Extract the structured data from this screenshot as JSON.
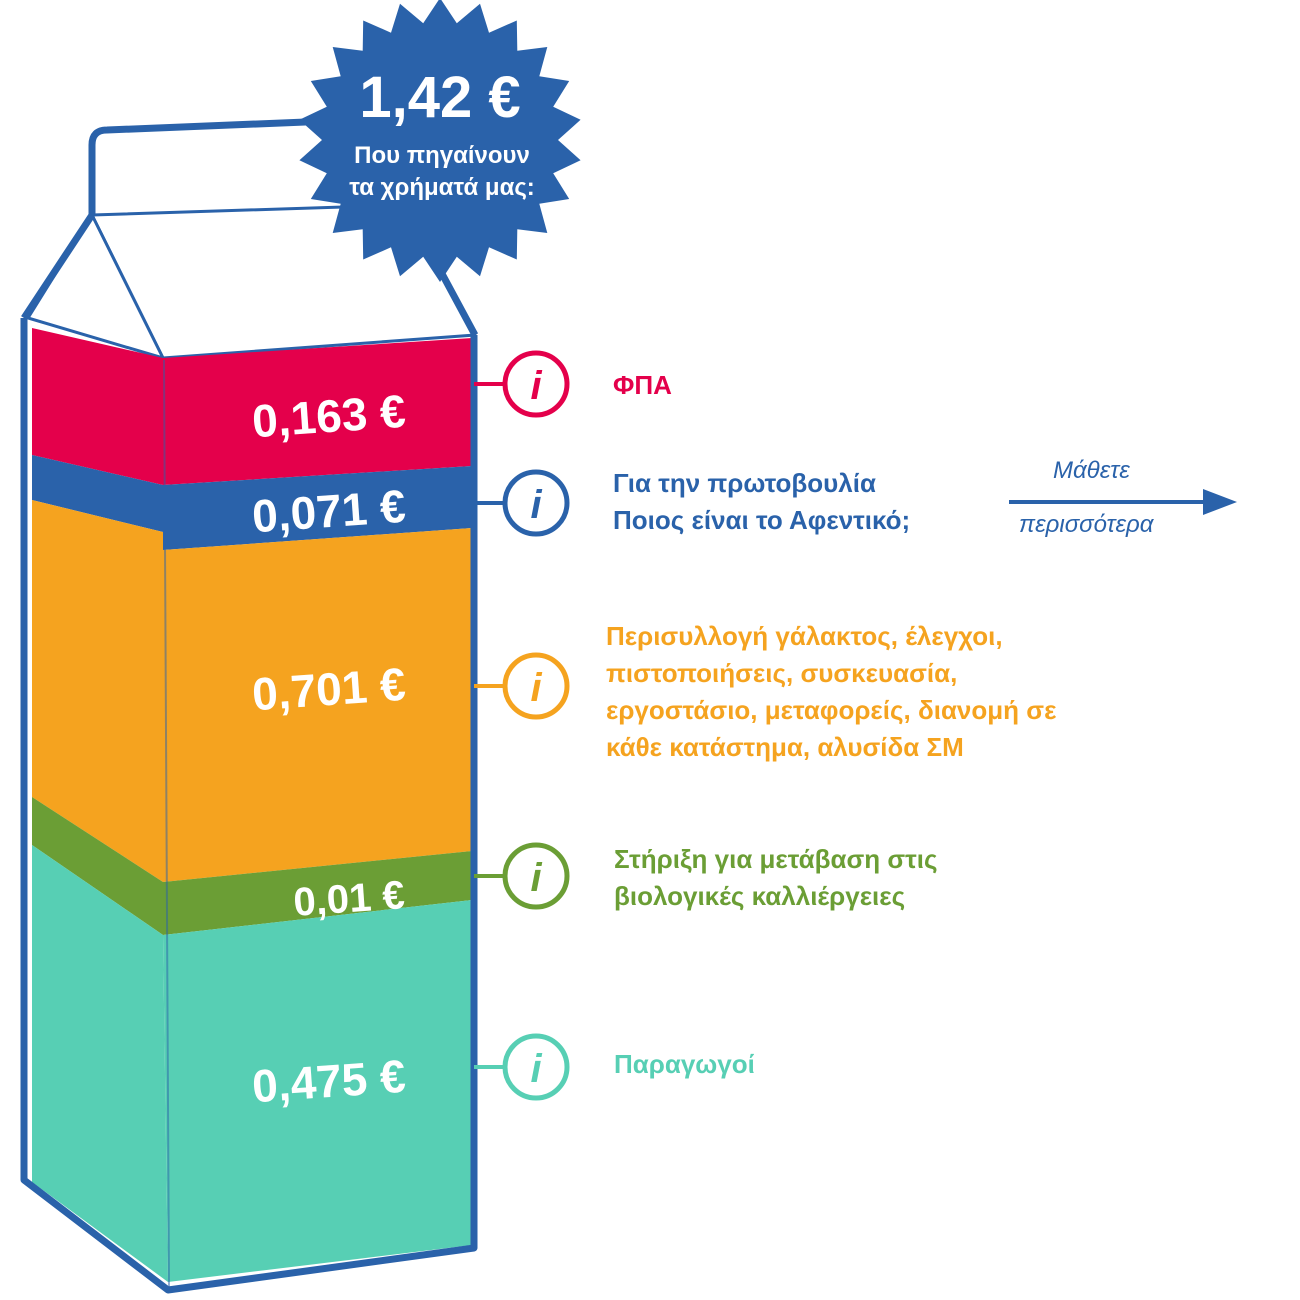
{
  "badge": {
    "total": "1,42 €",
    "line1": "Που πηγαίνουν",
    "line2": "τα χρήματά μας:"
  },
  "segments": [
    {
      "id": "vat",
      "value_label": "0,163 €",
      "color": "#e4004b",
      "label_lines": [
        "ΦΠΑ"
      ]
    },
    {
      "id": "initiative",
      "value_label": "0,071 €",
      "color": "#2a62aa",
      "label_lines": [
        "Για την πρωτοβουλία",
        "Ποιος είναι το Αφεντικό;"
      ]
    },
    {
      "id": "distribution",
      "value_label": "0,701 €",
      "color": "#f5a31f",
      "label_lines": [
        "Περισυλλογή γάλακτος, έλεγχοι,",
        "πιστοποιήσεις,  συσκευασία,",
        "εργοστάσιο, μεταφορείς, διανομή σε",
        "κάθε κατάστημα, αλυσίδα ΣΜ"
      ]
    },
    {
      "id": "organic",
      "value_label": "0,01 €",
      "color": "#6b9e35",
      "label_lines": [
        "Στήριξη για μετάβαση στις",
        "βιολογικές καλλιέργειες"
      ]
    },
    {
      "id": "producers",
      "value_label": "0,475 €",
      "color": "#57cfb4",
      "label_lines": [
        "Παραγωγοί"
      ]
    }
  ],
  "learn_more": {
    "line1": "Μάθετε",
    "line2": "περισσότερα"
  },
  "icons": {
    "info": "info-icon",
    "arrow": "arrow-right-icon"
  },
  "colors": {
    "outline": "#2a62aa",
    "badge": "#2a62aa"
  }
}
